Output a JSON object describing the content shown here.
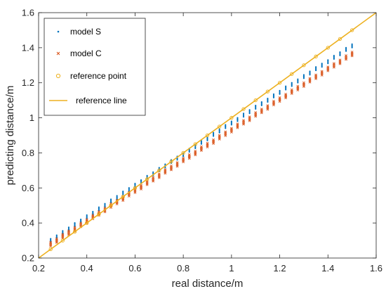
{
  "chart_data": {
    "type": "scatter",
    "title": "",
    "xlabel": "real distance/m",
    "ylabel": "predicting distance/m",
    "xlim": [
      0.2,
      1.6
    ],
    "ylim": [
      0.2,
      1.6
    ],
    "xticks": [
      "0.2",
      "0.4",
      "0.6",
      "0.8",
      "1",
      "1.2",
      "1.4",
      "1.6"
    ],
    "yticks": [
      "0.2",
      "0.4",
      "0.6",
      "0.8",
      "1",
      "1.2",
      "1.4",
      "1.6"
    ],
    "grid": false,
    "legend_position": "top-left",
    "series": [
      {
        "name": "model S",
        "marker": "dot",
        "color": "#0072BD",
        "x": [
          0.25,
          0.275,
          0.3,
          0.325,
          0.35,
          0.375,
          0.4,
          0.425,
          0.45,
          0.475,
          0.5,
          0.525,
          0.55,
          0.575,
          0.6,
          0.625,
          0.65,
          0.675,
          0.7,
          0.725,
          0.75,
          0.775,
          0.8,
          0.825,
          0.85,
          0.875,
          0.9,
          0.925,
          0.95,
          0.975,
          1.0,
          1.025,
          1.05,
          1.075,
          1.1,
          1.125,
          1.15,
          1.175,
          1.2,
          1.225,
          1.25,
          1.275,
          1.3,
          1.325,
          1.35,
          1.375,
          1.4,
          1.425,
          1.45,
          1.475,
          1.5
        ],
        "y": [
          0.31,
          0.33,
          0.355,
          0.375,
          0.4,
          0.42,
          0.445,
          0.465,
          0.49,
          0.51,
          0.535,
          0.555,
          0.58,
          0.6,
          0.625,
          0.645,
          0.67,
          0.69,
          0.715,
          0.735,
          0.76,
          0.78,
          0.8,
          0.825,
          0.845,
          0.87,
          0.89,
          0.915,
          0.935,
          0.96,
          0.98,
          1.0,
          1.025,
          1.045,
          1.07,
          1.09,
          1.11,
          1.135,
          1.155,
          1.18,
          1.2,
          1.22,
          1.245,
          1.265,
          1.29,
          1.31,
          1.33,
          1.355,
          1.375,
          1.4,
          1.42
        ]
      },
      {
        "name": "model C",
        "marker": "x",
        "color": "#D95319",
        "x": [
          0.25,
          0.275,
          0.3,
          0.325,
          0.35,
          0.375,
          0.4,
          0.425,
          0.45,
          0.475,
          0.5,
          0.525,
          0.55,
          0.575,
          0.6,
          0.625,
          0.65,
          0.675,
          0.7,
          0.725,
          0.75,
          0.775,
          0.8,
          0.825,
          0.85,
          0.875,
          0.9,
          0.925,
          0.95,
          0.975,
          1.0,
          1.025,
          1.05,
          1.075,
          1.1,
          1.125,
          1.15,
          1.175,
          1.2,
          1.225,
          1.25,
          1.275,
          1.3,
          1.325,
          1.35,
          1.375,
          1.4,
          1.425,
          1.45,
          1.475,
          1.5
        ],
        "y": [
          0.29,
          0.31,
          0.335,
          0.355,
          0.375,
          0.4,
          0.42,
          0.445,
          0.465,
          0.485,
          0.51,
          0.53,
          0.55,
          0.575,
          0.595,
          0.615,
          0.64,
          0.66,
          0.68,
          0.705,
          0.725,
          0.745,
          0.77,
          0.79,
          0.81,
          0.835,
          0.855,
          0.875,
          0.9,
          0.92,
          0.94,
          0.965,
          0.985,
          1.005,
          1.03,
          1.05,
          1.07,
          1.095,
          1.115,
          1.135,
          1.16,
          1.18,
          1.2,
          1.225,
          1.245,
          1.265,
          1.29,
          1.31,
          1.33,
          1.355,
          1.375
        ]
      },
      {
        "name": "reference point",
        "marker": "circle",
        "color": "#EDB120",
        "x": [
          0.25,
          0.3,
          0.35,
          0.4,
          0.45,
          0.5,
          0.55,
          0.6,
          0.65,
          0.7,
          0.75,
          0.8,
          0.85,
          0.9,
          0.95,
          1.0,
          1.05,
          1.1,
          1.15,
          1.2,
          1.25,
          1.3,
          1.35,
          1.4,
          1.45,
          1.5
        ],
        "y": [
          0.25,
          0.3,
          0.35,
          0.4,
          0.45,
          0.5,
          0.55,
          0.6,
          0.65,
          0.7,
          0.75,
          0.8,
          0.85,
          0.9,
          0.95,
          1.0,
          1.05,
          1.1,
          1.15,
          1.2,
          1.25,
          1.3,
          1.35,
          1.4,
          1.45,
          1.5
        ]
      },
      {
        "name": "reference line",
        "marker": "line",
        "color": "#EDB120",
        "x": [
          0.2,
          1.6
        ],
        "y": [
          0.2,
          1.6
        ]
      }
    ]
  }
}
